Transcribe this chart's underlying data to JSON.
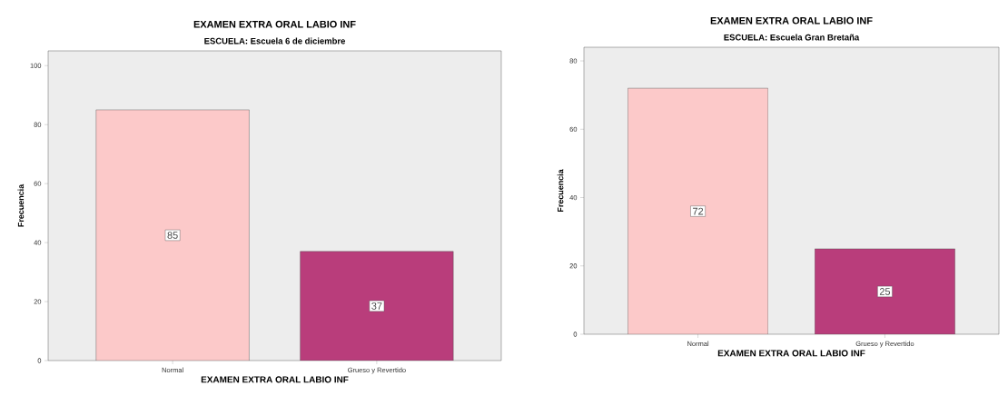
{
  "chart_data": [
    {
      "type": "bar",
      "title": "EXAMEN EXTRA ORAL LABIO INF",
      "subtitle": "ESCUELA: Escuela 6 de diciembre",
      "xlabel": "EXAMEN EXTRA ORAL LABIO INF",
      "ylabel": "Frecuencia",
      "categories": [
        "Normal",
        "Grueso y Revertido"
      ],
      "values": [
        85,
        37
      ],
      "colors": [
        "#fcc9c9",
        "#b93d7b"
      ],
      "ylim": [
        0,
        105
      ],
      "yticks": [
        0,
        20,
        40,
        60,
        80,
        100
      ],
      "data_labels": true,
      "grid": false
    },
    {
      "type": "bar",
      "title": "EXAMEN EXTRA ORAL LABIO INF",
      "subtitle": "ESCUELA: Escuela Gran Bretaña",
      "xlabel": "EXAMEN EXTRA ORAL LABIO INF",
      "ylabel": "Frecuencia",
      "categories": [
        "Normal",
        "Grueso y Revertido"
      ],
      "values": [
        72,
        25
      ],
      "colors": [
        "#fcc9c9",
        "#b93d7b"
      ],
      "ylim": [
        0,
        84
      ],
      "yticks": [
        0,
        20,
        40,
        60,
        80
      ],
      "data_labels": true,
      "grid": false
    }
  ]
}
